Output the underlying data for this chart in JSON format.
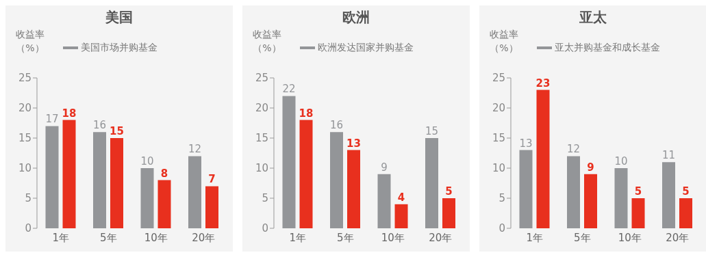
{
  "chart_data": [
    {
      "type": "bar",
      "title": "美国",
      "ylabel": "收益率（%）",
      "categories": [
        "1年",
        "5年",
        "10年",
        "20年"
      ],
      "series": [
        {
          "name": "美国市场并购基金",
          "color": "#939598",
          "values": [
            17,
            16,
            10,
            12
          ]
        },
        {
          "color": "#e8301e",
          "values": [
            18,
            15,
            8,
            7
          ]
        }
      ],
      "ylim": [
        0,
        25
      ],
      "yticks": [
        0,
        5,
        10,
        15,
        20,
        25
      ],
      "grid": false,
      "legend": "top",
      "data_labels": true
    },
    {
      "type": "bar",
      "title": "欧洲",
      "ylabel": "收益率（%）",
      "categories": [
        "1年",
        "5年",
        "10年",
        "20年"
      ],
      "series": [
        {
          "name": "欧洲发达国家并购基金",
          "color": "#939598",
          "values": [
            22,
            16,
            9,
            15
          ]
        },
        {
          "color": "#e8301e",
          "values": [
            18,
            13,
            4,
            5
          ]
        }
      ],
      "ylim": [
        0,
        25
      ],
      "yticks": [
        0,
        5,
        10,
        15,
        20,
        25
      ],
      "grid": false,
      "legend": "top",
      "data_labels": true
    },
    {
      "type": "bar",
      "title": "亚太",
      "ylabel": "收益率（%）",
      "categories": [
        "1年",
        "5年",
        "10年",
        "20年"
      ],
      "series": [
        {
          "name": "亚太并购基金和成长基金",
          "color": "#939598",
          "values": [
            13,
            12,
            10,
            11
          ]
        },
        {
          "color": "#e8301e",
          "values": [
            23,
            9,
            5,
            5
          ]
        }
      ],
      "ylim": [
        0,
        25
      ],
      "yticks": [
        0,
        5,
        10,
        15,
        20,
        25
      ],
      "grid": false,
      "legend": "top",
      "data_labels": true
    }
  ]
}
